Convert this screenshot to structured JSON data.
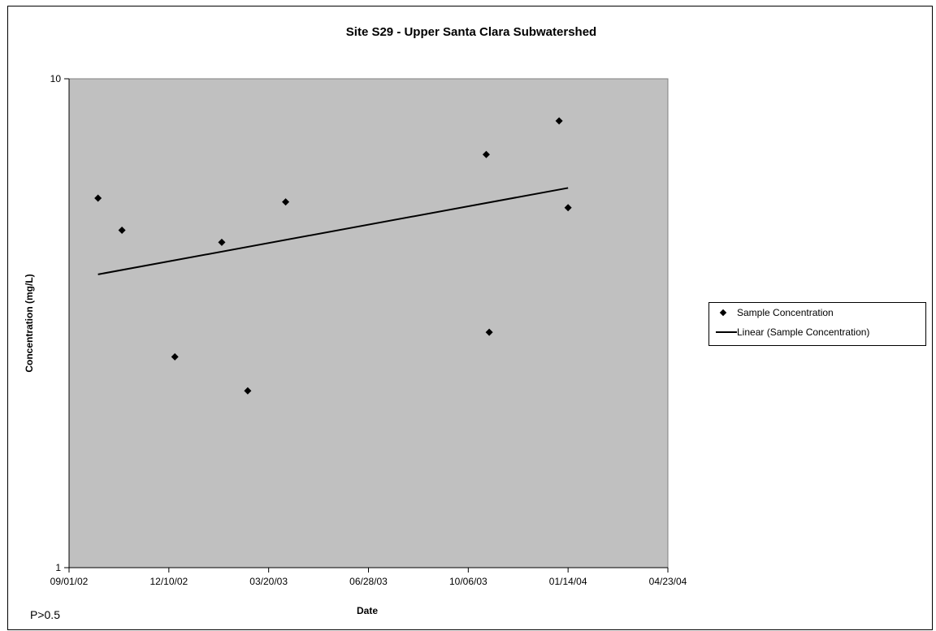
{
  "chart_data": {
    "type": "scatter",
    "title": "Site S29 - Upper Santa Clara Subwatershed",
    "xlabel": "Date",
    "ylabel": "Concentration (mg/L)",
    "x_tick_labels": [
      "09/01/02",
      "12/10/02",
      "03/20/03",
      "06/28/03",
      "10/06/03",
      "01/14/04",
      "04/23/04"
    ],
    "y_tick_labels": [
      "1",
      "10"
    ],
    "xlim": [
      "09/01/02",
      "04/23/04"
    ],
    "ylim": [
      1,
      10
    ],
    "y_scale": "log",
    "background": "#c0c0c0",
    "grid": false,
    "legend_position": "right",
    "series": [
      {
        "name": "Sample Concentration",
        "marker": "diamond",
        "color": "#000000",
        "points": [
          {
            "x": "09/30/02",
            "y": 5.7
          },
          {
            "x": "10/24/02",
            "y": 4.9
          },
          {
            "x": "12/16/02",
            "y": 2.7
          },
          {
            "x": "02/01/03",
            "y": 4.63
          },
          {
            "x": "02/27/03",
            "y": 2.3
          },
          {
            "x": "04/06/03",
            "y": 5.6
          },
          {
            "x": "10/24/03",
            "y": 7.0
          },
          {
            "x": "10/27/03",
            "y": 3.03
          },
          {
            "x": "01/05/04",
            "y": 8.2
          },
          {
            "x": "01/14/04",
            "y": 5.45
          }
        ]
      },
      {
        "name": "Linear (Sample Concentration)",
        "line": true,
        "color": "#000000",
        "points": [
          {
            "x": "09/30/02",
            "y": 3.98
          },
          {
            "x": "01/14/04",
            "y": 5.98
          }
        ]
      }
    ],
    "annotation": "P>0.5"
  }
}
